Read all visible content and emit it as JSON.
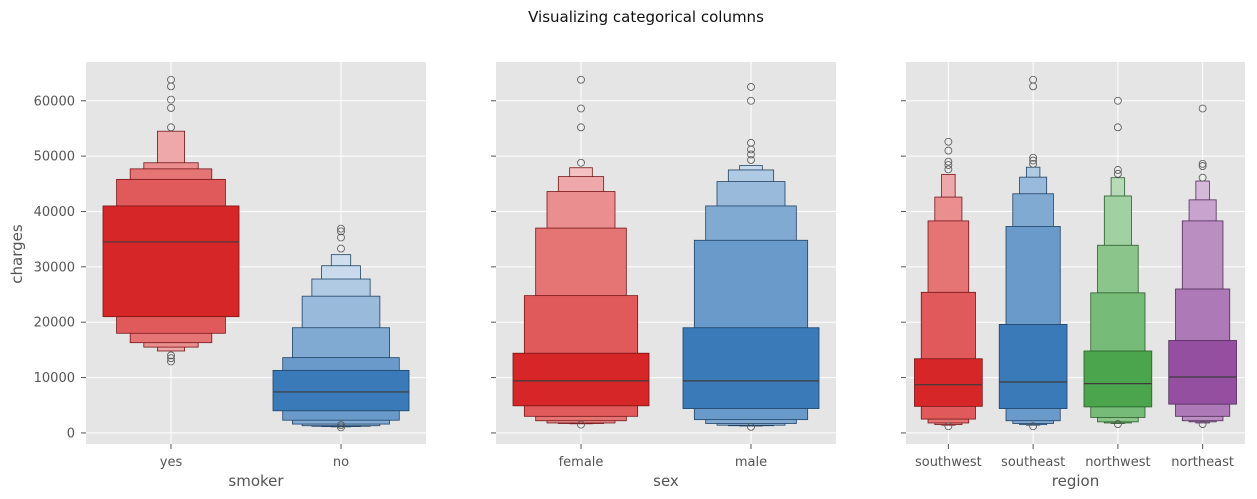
{
  "figure": {
    "title": "Visualizing categorical columns"
  },
  "colors": {
    "panel_bg": "#e5e5e5",
    "grid": "#ffffff",
    "median_line": "#3c3c3c",
    "outlier_edge": "#555555"
  },
  "chart_data": [
    {
      "type": "boxen",
      "xlabel": "smoker",
      "ylabel": "charges",
      "ylim": [
        -2000,
        67000
      ],
      "yticks": [
        0,
        10000,
        20000,
        30000,
        40000,
        50000,
        60000
      ],
      "grid": true,
      "categories": [
        {
          "label": "yes",
          "color": "#d62628",
          "median": 34500,
          "boxes": [
            [
              21000,
              41000
            ],
            [
              18000,
              45800
            ],
            [
              16300,
              47700
            ],
            [
              15500,
              48800
            ],
            [
              14800,
              54500
            ]
          ],
          "outliers": [
            14000,
            13500,
            12900,
            55200,
            58700,
            60200,
            62600,
            63800
          ]
        },
        {
          "label": "no",
          "color": "#3a7ab8",
          "median": 7400,
          "boxes": [
            [
              4000,
              11300
            ],
            [
              2300,
              13600
            ],
            [
              1600,
              19000
            ],
            [
              1300,
              24700
            ],
            [
              1200,
              27800
            ],
            [
              1150,
              30200
            ],
            [
              1100,
              32200
            ]
          ],
          "outliers": [
            1000,
            1400,
            33300,
            35300,
            36400,
            36900
          ]
        }
      ]
    },
    {
      "type": "boxen",
      "xlabel": "sex",
      "ylabel": "",
      "ylim": [
        -2000,
        67000
      ],
      "yticks": [
        0,
        10000,
        20000,
        30000,
        40000,
        50000,
        60000
      ],
      "grid": true,
      "categories": [
        {
          "label": "female",
          "color": "#d62628",
          "median": 9400,
          "boxes": [
            [
              4900,
              14400
            ],
            [
              3000,
              24800
            ],
            [
              2200,
              37000
            ],
            [
              1800,
              43600
            ],
            [
              1700,
              46300
            ],
            [
              1650,
              47900
            ]
          ],
          "outliers": [
            1500,
            48800,
            55200,
            58600,
            63800
          ]
        },
        {
          "label": "male",
          "color": "#3a7ab8",
          "median": 9400,
          "boxes": [
            [
              4400,
              19000
            ],
            [
              2400,
              34800
            ],
            [
              1700,
              41000
            ],
            [
              1400,
              45400
            ],
            [
              1300,
              47500
            ],
            [
              1250,
              48300
            ]
          ],
          "outliers": [
            1100,
            49300,
            50300,
            51200,
            52400,
            60000,
            62500
          ]
        }
      ]
    },
    {
      "type": "boxen",
      "xlabel": "region",
      "ylabel": "",
      "ylim": [
        -2000,
        67000
      ],
      "yticks": [
        0,
        10000,
        20000,
        30000,
        40000,
        50000,
        60000
      ],
      "grid": true,
      "categories": [
        {
          "label": "southwest",
          "color": "#d62628",
          "median": 8700,
          "boxes": [
            [
              4800,
              13400
            ],
            [
              2500,
              25400
            ],
            [
              1800,
              38300
            ],
            [
              1500,
              42600
            ],
            [
              1400,
              46700
            ]
          ],
          "outliers": [
            1200,
            47600,
            48400,
            49000,
            51000,
            52600
          ]
        },
        {
          "label": "southeast",
          "color": "#3a7ab8",
          "median": 9200,
          "boxes": [
            [
              4400,
              19600
            ],
            [
              2200,
              37300
            ],
            [
              1700,
              43200
            ],
            [
              1500,
              46200
            ],
            [
              1400,
              48000
            ]
          ],
          "outliers": [
            1200,
            48600,
            49200,
            49700,
            62600,
            63800
          ]
        },
        {
          "label": "northwest",
          "color": "#4ba54c",
          "median": 8900,
          "boxes": [
            [
              4700,
              14800
            ],
            [
              2800,
              25300
            ],
            [
              2000,
              33900
            ],
            [
              1800,
              42800
            ],
            [
              1700,
              46100
            ]
          ],
          "outliers": [
            1600,
            46800,
            47500,
            55200,
            60000
          ]
        },
        {
          "label": "northeast",
          "color": "#944fa0",
          "median": 10100,
          "boxes": [
            [
              5200,
              16700
            ],
            [
              3000,
              26000
            ],
            [
              2200,
              38300
            ],
            [
              2000,
              42100
            ],
            [
              1800,
              45500
            ]
          ],
          "outliers": [
            1600,
            46100,
            48200,
            48600,
            58600
          ]
        }
      ]
    }
  ]
}
